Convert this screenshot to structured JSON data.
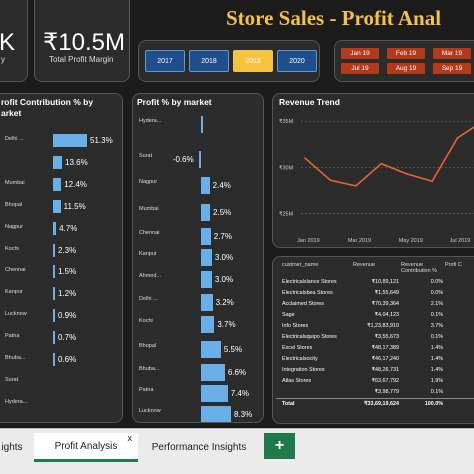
{
  "kpis": [
    {
      "value": "K",
      "label": "y"
    },
    {
      "value": "₹10.5M",
      "label": "Total Profit Margin"
    }
  ],
  "title": "Store Sales - Profit Anal",
  "years": [
    {
      "label": "2017",
      "selected": false
    },
    {
      "label": "2018",
      "selected": false
    },
    {
      "label": "2019",
      "selected": true
    },
    {
      "label": "2020",
      "selected": false
    }
  ],
  "months": [
    "Jan 19",
    "Feb 19",
    "Mar 19",
    "Jul 19",
    "Aug 19",
    "Sep 19"
  ],
  "colors": {
    "accent": "#f5c242",
    "bar": "#6aaee8",
    "button_blue": "#1f4e8c",
    "button_selected": "#f5c242",
    "month_button": "#b33a1a",
    "line": "#e8622c"
  },
  "profit_contribution": {
    "title_line1": "rofit Contribution % by",
    "title_line2": "arket"
  },
  "profit_pct": {
    "title": "Profit % by market"
  },
  "revenue_trend": {
    "title": "Revenue Trend"
  },
  "chart_data": [
    {
      "type": "bar",
      "orientation": "horizontal",
      "title": "Profit Contribution % by market",
      "categories": [
        "Delhi ...",
        "",
        "Mumbai",
        "Bhopal",
        "Nagpur",
        "Kochi",
        "Chennai",
        "Kanpur",
        "Lucknow",
        "Patna",
        "Bhuba...",
        "Surat",
        "Hydera..."
      ],
      "labels": [
        "51.3%",
        "13.6%",
        "12.4%",
        "11.5%",
        "4.7%",
        "2.3%",
        "1.5%",
        "1.2%",
        "0.9%",
        "0.7%",
        "0.6%",
        "",
        ""
      ],
      "values": [
        51.3,
        13.6,
        12.4,
        11.5,
        4.7,
        2.3,
        1.5,
        1.2,
        0.9,
        0.7,
        0.6,
        0,
        0
      ]
    },
    {
      "type": "bar",
      "orientation": "horizontal",
      "title": "Profit % by market",
      "categories": [
        "Hydera...",
        "Surat",
        "Nagpur",
        "Mumbai",
        "Chennai",
        "Kanpur",
        "Ahmed...",
        "Delhi ...",
        "Kochi",
        "Bhopal",
        "Bhuba...",
        "Patna",
        "Lucknow"
      ],
      "labels": [
        "",
        "-0.6%",
        "2.4%",
        "2.5%",
        "2.7%",
        "3.0%",
        "3.0%",
        "3.2%",
        "3.7%",
        "5.5%",
        "6.6%",
        "7.4%",
        "8.3%"
      ],
      "values": [
        0.3,
        -0.6,
        2.4,
        2.5,
        2.7,
        3.0,
        3.0,
        3.2,
        3.7,
        5.5,
        6.6,
        7.4,
        8.3
      ]
    },
    {
      "type": "line",
      "title": "Revenue Trend",
      "x": [
        "Jan 2019",
        "Feb 2019",
        "Mar 2019",
        "Apr 2019",
        "May 2019",
        "Jun 2019",
        "Jul 2019",
        "Aug 2019"
      ],
      "x_ticks": [
        "Jan 2019",
        "Mar 2019",
        "May 2019",
        "Jul 2019"
      ],
      "y_ticks": [
        "₹35M",
        "₹30M",
        "₹25M"
      ],
      "values": [
        31.0,
        28.6,
        28.0,
        30.4,
        29.3,
        28.5,
        33.2,
        35.0
      ],
      "ylim": [
        23,
        36
      ]
    }
  ],
  "table": {
    "headers": [
      "custmer_name",
      "Revenue",
      "Revenue Contribution %",
      "Profi C"
    ],
    "rows": [
      [
        "Electricalslance Stores",
        "₹10,89,121",
        "0.0%",
        ""
      ],
      [
        "Electricalsbea Stores",
        "₹1,55,649",
        "0.0%",
        ""
      ],
      [
        "Acclaimed Stores",
        "₹70,39,364",
        "2.1%",
        ""
      ],
      [
        "Sage",
        "₹4,04,123",
        "0.1%",
        ""
      ],
      [
        "Info Stores",
        "₹1,23,83,910",
        "3.7%",
        ""
      ],
      [
        "Electricalsquipo Stores",
        "₹3,55,673",
        "0.1%",
        ""
      ],
      [
        "Excel Stores",
        "₹48,17,389",
        "1.4%",
        ""
      ],
      [
        "Electricalsocity",
        "₹46,17,240",
        "1.4%",
        ""
      ],
      [
        "Integration Stores",
        "₹48,26,731",
        "1.4%",
        ""
      ],
      [
        "Atlas Stores",
        "₹63,67,792",
        "1.9%",
        ""
      ],
      [
        "",
        "₹3,98,779",
        "0.1%",
        ""
      ]
    ],
    "total": [
      "Total",
      "₹33,69,19,624",
      "100.0%",
      ""
    ]
  },
  "tabs": [
    {
      "label": "ights",
      "active": false
    },
    {
      "label": "Profit Analysis",
      "active": true,
      "close": "x"
    },
    {
      "label": "Performance Insights",
      "active": false
    }
  ],
  "add_tab": "+"
}
